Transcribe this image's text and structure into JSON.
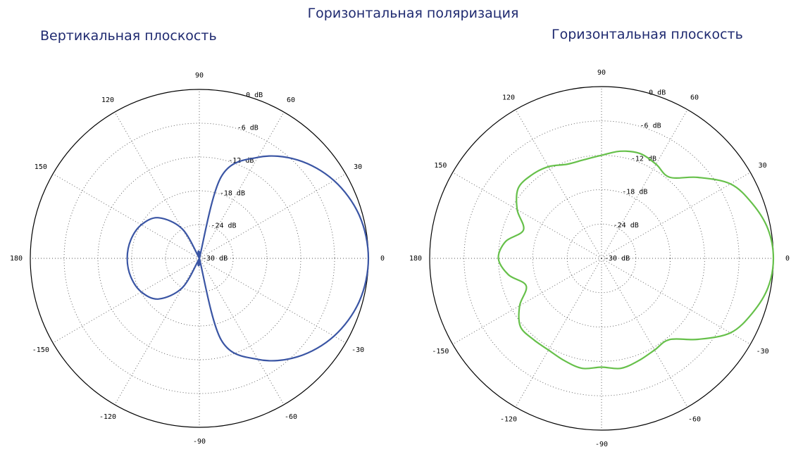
{
  "title": "Горизонтальная поляризация",
  "chart_data": [
    {
      "type": "polar-line",
      "title": "Вертикальная плоскость",
      "angle_ticks": [
        "0",
        "30",
        "60",
        "90",
        "120",
        "150",
        "180",
        "-150",
        "-120",
        "-90",
        "-60",
        "-30"
      ],
      "radial_labels": [
        "0 dB",
        "-6 dB",
        "-12 dB",
        "-18 dB",
        "-24 dB",
        "-30 dB"
      ],
      "rlim_db": [
        -30,
        0
      ],
      "color": "#3a55a4",
      "series": [
        {
          "angle_deg": [
            0,
            15,
            30,
            45,
            60,
            75,
            90,
            105,
            120,
            135,
            150,
            165,
            180,
            195,
            210,
            225,
            240,
            255,
            270,
            285,
            300,
            315,
            330,
            345
          ],
          "gain_db": [
            0,
            -0.6,
            -2.4,
            -5.3,
            -9.3,
            -15,
            -30,
            -30,
            -24,
            -19.8,
            -18.1,
            -17.4,
            -17.2,
            -17.4,
            -18.1,
            -19.8,
            -24,
            -30,
            -30,
            -15,
            -9.3,
            -5.3,
            -2.4,
            -0.6
          ]
        }
      ]
    },
    {
      "type": "polar-line",
      "title": "Горизонтальная плоскость",
      "angle_ticks": [
        "0",
        "30",
        "60",
        "90",
        "120",
        "150",
        "180",
        "-150",
        "-120",
        "-90",
        "-60",
        "-30"
      ],
      "radial_labels": [
        "0 dB",
        "-6 dB",
        "-12 dB",
        "-18 dB",
        "-24 dB",
        "-30 dB"
      ],
      "rlim_db": [
        -30,
        0
      ],
      "color": "#66c04a",
      "series": [
        {
          "angle_deg": [
            0,
            10,
            20,
            30,
            40,
            50,
            60,
            70,
            80,
            90,
            100,
            110,
            120,
            130,
            140,
            150,
            160,
            170,
            180,
            190,
            200,
            210,
            220,
            230,
            240,
            250,
            260,
            270,
            280,
            290,
            300,
            310,
            320,
            330,
            340,
            350
          ],
          "gain_db": [
            0,
            -0.5,
            -2,
            -4,
            -8,
            -11.5,
            -11,
            -10.5,
            -11,
            -12,
            -12.5,
            -12.5,
            -11.5,
            -11,
            -11,
            -13,
            -15.5,
            -13,
            -12,
            -13.5,
            -16,
            -13.5,
            -11.5,
            -11.5,
            -11.5,
            -11,
            -10.5,
            -11,
            -10.5,
            -11,
            -11.5,
            -11.5,
            -8,
            -4,
            -2,
            -0.5
          ]
        }
      ]
    }
  ]
}
